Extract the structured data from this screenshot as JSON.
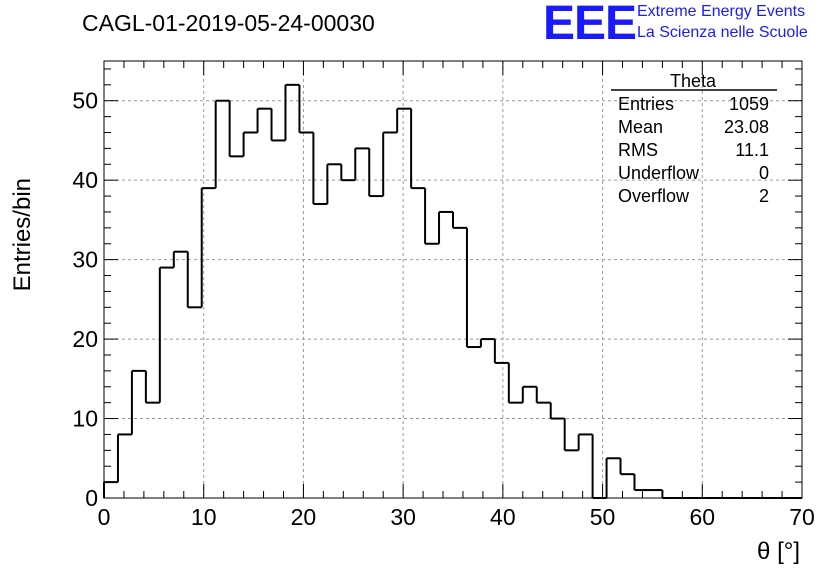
{
  "title": "CAGL-01-2019-05-24-00030",
  "logo": {
    "mark": "EEE",
    "line1": "Extreme Energy Events",
    "line2": "La Scienza nelle Scuole",
    "color": "#1a1aff"
  },
  "stats_box": {
    "name": "Theta",
    "rows": [
      {
        "label": "Entries",
        "value": "1059"
      },
      {
        "label": "Mean",
        "value": "23.08"
      },
      {
        "label": "RMS",
        "value": "11.1"
      },
      {
        "label": "Underflow",
        "value": "0"
      },
      {
        "label": "Overflow",
        "value": "2"
      }
    ]
  },
  "chart_data": {
    "type": "histogram",
    "xlabel": "θ [°]",
    "ylabel": "Entries/bin",
    "xlim": [
      0,
      70
    ],
    "ylim": [
      0,
      55
    ],
    "bin_width": 1.4,
    "bin_start": 0,
    "values": [
      2,
      8,
      16,
      12,
      29,
      31,
      24,
      39,
      50,
      43,
      46,
      49,
      45,
      52,
      46,
      37,
      42,
      40,
      44,
      38,
      46,
      49,
      39,
      32,
      36,
      34,
      19,
      20,
      17,
      12,
      14,
      12,
      10,
      6,
      8,
      0,
      5,
      3,
      1,
      1,
      0,
      0,
      0,
      0,
      0,
      0,
      0,
      0,
      0,
      0
    ],
    "x_ticks": [
      0,
      10,
      20,
      30,
      40,
      50,
      60,
      70
    ],
    "y_ticks": [
      0,
      10,
      20,
      30,
      40,
      50
    ],
    "grid": true,
    "line_color": "#000000"
  }
}
